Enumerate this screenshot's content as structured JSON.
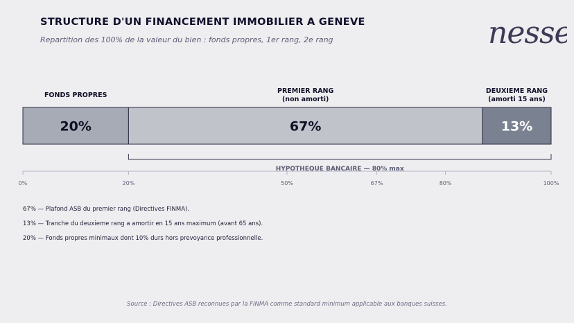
{
  "header": {
    "title": "STRUCTURE D'UN FINANCEMENT IMMOBILIER A GENEVE",
    "subtitle": "Repartition des 100% de la valeur du bien : fonds propres, 1er rang, 2e rang"
  },
  "logo": {
    "text": "nessell"
  },
  "chart_data": {
    "type": "bar",
    "orientation": "horizontal-stacked",
    "xlim": [
      0,
      100
    ],
    "segments": [
      {
        "label": [
          "FONDS PROPRES"
        ],
        "value": 20,
        "value_label": "20%",
        "color": "#a7abb5",
        "text_color": "#0f0f24"
      },
      {
        "label": [
          "PREMIER RANG",
          "(non amorti)"
        ],
        "value": 67,
        "value_label": "67%",
        "color": "#c1c3cb",
        "text_color": "#0f0f24"
      },
      {
        "label": [
          "DEUXIEME RANG",
          "(amorti 15 ans)"
        ],
        "value": 13,
        "value_label": "13%",
        "color": "#7a8292",
        "text_color": "#ffffff"
      }
    ],
    "bracket": {
      "from": 20,
      "to": 100,
      "label": "HYPOTHEQUE BANCAIRE — 80% max"
    },
    "ticks": [
      {
        "value": 0,
        "label": "0%"
      },
      {
        "value": 20,
        "label": "20%"
      },
      {
        "value": 50,
        "label": "50%"
      },
      {
        "value": 67,
        "label": "67%"
      },
      {
        "value": 80,
        "label": "80%"
      },
      {
        "value": 100,
        "label": "100%"
      }
    ]
  },
  "notes": [
    "67% — Plafond ASB du premier rang (Directives FINMA).",
    "13% — Tranche du deuxieme rang a amortir en 15 ans maximum (avant 65 ans).",
    "20% — Fonds propres minimaux dont 10% durs hors prevoyance professionnelle."
  ],
  "source": "Source : Directives ASB reconnues par la FINMA comme standard minimum applicable aux banques suisses."
}
